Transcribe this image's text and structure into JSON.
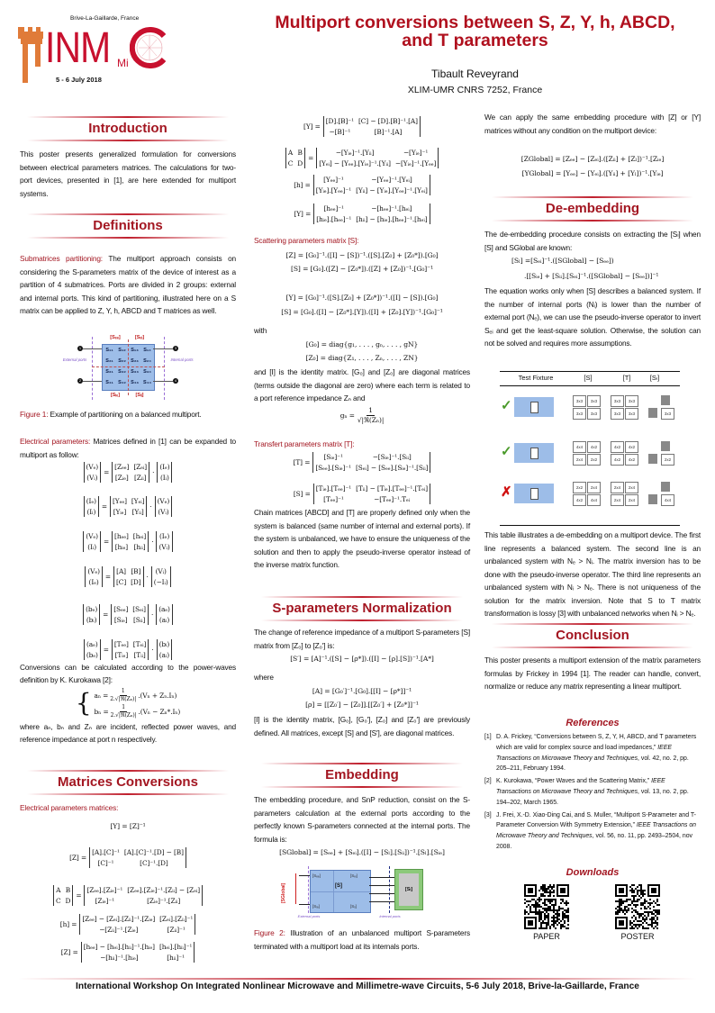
{
  "header": {
    "logo": {
      "location": "Brive-La-Gaillarde, France",
      "letters": "INM",
      "sub": "Mi",
      "date": "5 - 6 July 2018"
    },
    "title_line1": "Multiport conversions between S, Z, Y, h, ABCD,",
    "title_line2": "and T parameters",
    "author": "Tibault Reveyrand",
    "affiliation": "XLIM-UMR CNRS 7252, France"
  },
  "colors": {
    "accent": "#a31621",
    "figure_blue": "#9dbde8",
    "load_green": "#8cc97a"
  },
  "col1": {
    "blocks": [
      {
        "type": "heading",
        "text": "Introduction"
      },
      {
        "type": "para",
        "text": "This poster presents generalized formulation for conversions between electrical parameters matrices. The calculations for two-port devices, presented in  [1], are here extended for multiport systems."
      },
      {
        "type": "heading",
        "text": "Definitions"
      },
      {
        "type": "para",
        "label": "Submatrices partitioning:",
        "text": " The multiport approach consists on considering the S-parameters matrix of the device of interest as a partition of 4 submatrices. Ports are divided in 2 groups: external and internal ports. This kind of partitioning, illustrated here on a S matrix can be applied to Z, Y, h, ABCD and T matrices as well."
      },
      {
        "type": "figure1",
        "cells": [
          [
            "S₁₁",
            "S₁₂",
            "S₁₃",
            "S₁₄"
          ],
          [
            "S₂₁",
            "S₂₂",
            "S₂₃",
            "S₂₄"
          ],
          [
            "S₃₁",
            "S₃₂",
            "S₃₃",
            "S₃₄"
          ],
          [
            "S₄₁",
            "S₄₂",
            "S₄₃",
            "S₄₄"
          ]
        ],
        "blocks": [
          "[Sₑₑ]",
          "[Sₑᵢ]",
          "[Sᵢₑ]",
          "[Sᵢᵢ]"
        ],
        "external_label": "External ports",
        "internal_label": "Internal ports",
        "ports": [
          "1",
          "2",
          "3",
          "4"
        ]
      },
      {
        "type": "caption",
        "label": "Figure 1:",
        "text": " Example of partitioning on a balanced multiport."
      },
      {
        "type": "para",
        "label": "Electrical parameters:",
        "text": " Matrices defined in [1] can be expanded to multiport as follow:"
      },
      {
        "type": "eqm",
        "parts": [
          {
            "m": [
              [
                "(Vₑ)"
              ],
              [
                "(Vᵢ)"
              ]
            ]
          },
          "=",
          {
            "m": [
              [
                "[Zₑₑ]",
                "[Zₑᵢ]"
              ],
              [
                "[Zᵢₑ]",
                "[Zᵢᵢ]"
              ]
            ]
          },
          "·",
          {
            "m": [
              [
                "(Iₑ)"
              ],
              [
                "(Iᵢ)"
              ]
            ]
          }
        ]
      },
      {
        "type": "eqm",
        "parts": [
          {
            "m": [
              [
                "(Iₑ)"
              ],
              [
                "(Iᵢ)"
              ]
            ]
          },
          "=",
          {
            "m": [
              [
                "[Yₑₑ]",
                "[Yₑᵢ]"
              ],
              [
                "[Yᵢₑ]",
                "[Yᵢᵢ]"
              ]
            ]
          },
          "·",
          {
            "m": [
              [
                "(Vₑ)"
              ],
              [
                "(Vᵢ)"
              ]
            ]
          }
        ]
      },
      {
        "type": "eqm",
        "parts": [
          {
            "m": [
              [
                "(Vₑ)"
              ],
              [
                "(Iᵢ)"
              ]
            ]
          },
          "=",
          {
            "m": [
              [
                "[hₑₑ]",
                "[hₑᵢ]"
              ],
              [
                "[hᵢₑ]",
                "[hᵢᵢ]"
              ]
            ]
          },
          "·",
          {
            "m": [
              [
                "(Iₑ)"
              ],
              [
                "(Vᵢ)"
              ]
            ]
          }
        ]
      },
      {
        "type": "eqm",
        "parts": [
          {
            "m": [
              [
                "(Vₑ)"
              ],
              [
                "(Iₑ)"
              ]
            ]
          },
          "=",
          {
            "m": [
              [
                "[A]",
                "[B]"
              ],
              [
                "[C]",
                "[D]"
              ]
            ]
          },
          "·",
          {
            "m": [
              [
                "(Vᵢ)"
              ],
              [
                "(−Iᵢ)"
              ]
            ]
          }
        ]
      },
      {
        "type": "eqm",
        "parts": [
          {
            "m": [
              [
                "(bₑ)"
              ],
              [
                "(bᵢ)"
              ]
            ]
          },
          "=",
          {
            "m": [
              [
                "[Sₑₑ]",
                "[Sₑᵢ]"
              ],
              [
                "[Sᵢₑ]",
                "[Sᵢᵢ]"
              ]
            ]
          },
          "·",
          {
            "m": [
              [
                "(aₑ)"
              ],
              [
                "(aᵢ)"
              ]
            ]
          }
        ]
      },
      {
        "type": "eqm",
        "parts": [
          {
            "m": [
              [
                "(aₑ)"
              ],
              [
                "(bₑ)"
              ]
            ]
          },
          "=",
          {
            "m": [
              [
                "[Tₑₑ]",
                "[Tₑᵢ]"
              ],
              [
                "[Tᵢₑ]",
                "[Tᵢᵢ]"
              ]
            ]
          },
          "·",
          {
            "m": [
              [
                "(bᵢ)"
              ],
              [
                "(aᵢ)"
              ]
            ]
          }
        ]
      },
      {
        "type": "para",
        "text": "Conversions can be calculated according to the power-waves definition by K. Kurokawa [2]:"
      },
      {
        "type": "system",
        "lines": [
          {
            "lhs": "aₙ =",
            "num": "1",
            "den": "2.√|ℜ(Zₙ)|",
            "rhs": ".(Vₙ + Zₙ.Iₙ)"
          },
          {
            "lhs": "bₙ =",
            "num": "1",
            "den": "2.√|ℜ(Zₙ)|",
            "rhs": ".(Vₙ − Zₙ*.Iₙ)"
          }
        ]
      },
      {
        "type": "para",
        "text": "where aₙ, bₙ and Zₙ are incident, reflected power waves, and reference impedance at port n respectively."
      },
      {
        "type": "heading",
        "text": "Matrices Conversions"
      },
      {
        "type": "para",
        "label": "Electrical parameters matrices:",
        "text": ""
      },
      {
        "type": "eq",
        "text": "[Y] = [Z]⁻¹"
      },
      {
        "type": "eqm",
        "parts": [
          "[Z] =",
          {
            "m": [
              [
                "[A].[C]⁻¹",
                "[A].[C]⁻¹.[D] − [B]"
              ],
              [
                "[C]⁻¹",
                "[C]⁻¹.[D]"
              ]
            ]
          }
        ]
      },
      {
        "type": "eqm",
        "parts": [
          {
            "m": [
              [
                "A",
                "B"
              ],
              [
                "C",
                "D"
              ]
            ]
          },
          "=",
          {
            "m": [
              [
                "[Zₑₑ].[Zᵢₑ]⁻¹",
                "[Zₑₑ].[Zᵢₑ]⁻¹.[Zᵢᵢ] − [Zₑᵢ]"
              ],
              [
                "[Zᵢₑ]⁻¹",
                "[Zᵢₑ]⁻¹.[Zᵢᵢ]"
              ]
            ]
          }
        ]
      },
      {
        "type": "eqm",
        "parts": [
          "[h] =",
          {
            "m": [
              [
                "[Zₑₑ] − [Zₑᵢ].[Zᵢᵢ]⁻¹.[Zᵢₑ]",
                "[Zₑᵢ].[Zᵢᵢ]⁻¹"
              ],
              [
                "−[Zᵢᵢ]⁻¹.[Zᵢₑ]",
                "[Zᵢᵢ]⁻¹"
              ]
            ]
          }
        ]
      },
      {
        "type": "eqm",
        "parts": [
          "[Z] =",
          {
            "m": [
              [
                "[hₑₑ] − [hₑᵢ].[hᵢᵢ]⁻¹.[hᵢₑ]",
                "[hₑᵢ].[hᵢᵢ]⁻¹"
              ],
              [
                "−[hᵢᵢ]⁻¹.[hᵢₑ]",
                "[hᵢᵢ]⁻¹"
              ]
            ]
          }
        ]
      }
    ]
  },
  "col2": {
    "blocks": [
      {
        "type": "eqm",
        "parts": [
          "[Y] =",
          {
            "m": [
              [
                "[D].[B]⁻¹",
                "[C] − [D].[B]⁻¹.[A]"
              ],
              [
                "−[B]⁻¹",
                "[B]⁻¹.[A]"
              ]
            ]
          }
        ]
      },
      {
        "type": "eqm",
        "parts": [
          {
            "m": [
              [
                "A",
                "B"
              ],
              [
                "C",
                "D"
              ]
            ]
          },
          "=",
          {
            "m": [
              [
                "−[Yᵢₑ]⁻¹.[Yᵢᵢ]",
                "−[Yᵢₑ]⁻¹"
              ],
              [
                "[Yₑᵢ] − [Yₑₑ].[Yᵢₑ]⁻¹.[Yᵢᵢ]",
                "−[Yᵢₑ]⁻¹.[Yₑₑ]"
              ]
            ]
          }
        ]
      },
      {
        "type": "eqm",
        "parts": [
          "[h] =",
          {
            "m": [
              [
                "[Yₑₑ]⁻¹",
                "−[Yₑₑ]⁻¹.[Yₑᵢ]"
              ],
              [
                "[Yᵢₑ].[Yₑₑ]⁻¹",
                "[Yᵢᵢ] − [Yᵢₑ].[Yₑₑ]⁻¹.[Yₑᵢ]"
              ]
            ]
          }
        ]
      },
      {
        "type": "eqm",
        "parts": [
          "[Y] =",
          {
            "m": [
              [
                "[hₑₑ]⁻¹",
                "−[hₑₑ]⁻¹.[hₑᵢ]"
              ],
              [
                "[hᵢₑ].[hₑₑ]⁻¹",
                "[hᵢᵢ] − [hᵢₑ].[hₑₑ]⁻¹.[hₑᵢ]"
              ]
            ]
          }
        ]
      },
      {
        "type": "para",
        "label": "Scattering parameters matrix [S]:",
        "text": ""
      },
      {
        "type": "eq",
        "text": "[Z] = [G₀]⁻¹.([I] − [S])⁻¹.([S].[Z₀] + [Z₀*]).[G₀]"
      },
      {
        "type": "eq",
        "text": "[S] = [G₀].([Z] − [Z₀*]).([Z] + [Z₀])⁻¹.[G₀]⁻¹"
      },
      {
        "type": "eq",
        "text": "[Y] = [G₀]⁻¹.([S].[Z₀] + [Z₀*])⁻¹.([I] − [S]).[G₀]"
      },
      {
        "type": "eq",
        "text": "[S] = [G₀].([I] − [Z₀*].[Y]).([I] + [Z₀].[Y])⁻¹.[G₀]⁻¹"
      },
      {
        "type": "para",
        "text": "with"
      },
      {
        "type": "eq",
        "text": "[G₀] = diag{g₁, . . . , gₙ, . . . , gN}"
      },
      {
        "type": "eq",
        "text": "[Z₀] = diag{Z₁, . . . , Zₙ, . . . , ZN}"
      },
      {
        "type": "para",
        "text": "and [I] is the identity matrix. [G₀] and [Z₀] are diagonal matrices (terms outside the diagonal are zero) where each term is related to a port reference impedance Zₙ and"
      },
      {
        "type": "frac",
        "lhs": "gₙ =",
        "num": "1",
        "den": "√|ℜ(Zₙ)|"
      },
      {
        "type": "para",
        "label": "Transfert parameters matrix [T]:",
        "text": ""
      },
      {
        "type": "eqm",
        "parts": [
          "[T] =",
          {
            "m": [
              [
                "[Sᵢₑ]⁻¹",
                "−[Sᵢₑ]⁻¹.[Sᵢᵢ]"
              ],
              [
                "[Sₑₑ].[Sᵢₑ]⁻¹",
                "[Sₑᵢ] − [Sₑₑ].[Sᵢₑ]⁻¹.[Sᵢᵢ]"
              ]
            ]
          }
        ]
      },
      {
        "type": "eqm",
        "parts": [
          "[S] =",
          {
            "m": [
              [
                "[Tᵢₑ].[Tₑₑ]⁻¹",
                "[Tᵢᵢ] − [Tᵢₑ].[Tₑₑ]⁻¹.[Tₑᵢ]"
              ],
              [
                "[Tₑₑ]⁻¹",
                "−[Tₑₑ]⁻¹.Tₑᵢ"
              ]
            ]
          }
        ]
      },
      {
        "type": "para",
        "text": "Chain matrices [ABCD] and [T] are properly defined only when the system is balanced (same number of internal and external ports). If the system is unbalanced, we have to ensure the uniqueness of the solution and then to apply the pseudo-inverse operator instead of the inverse matrix function."
      },
      {
        "type": "heading",
        "text": "S-parameters Normalization"
      },
      {
        "type": "para",
        "text": "The change of reference impedance of a multiport S-parameters [S] matrix from [Z₀] to [Z₀′] is:"
      },
      {
        "type": "eq",
        "text": "[S′] = [A]⁻¹.([S] − [ρ*]).([I] − [ρ].[S])⁻¹.[A*]"
      },
      {
        "type": "para",
        "text": "where"
      },
      {
        "type": "eq",
        "text": "[A] = [G₀′]⁻¹.[G₀].[[I] − [ρ*]]⁻¹"
      },
      {
        "type": "eq",
        "text": "[ρ] = [[Z₀′] − [Z₀]].[[Z₀′] + [Z₀*]]⁻¹"
      },
      {
        "type": "para",
        "text": "[I] is the identity matrix, [G₀], [G₀′], [Z₀] and [Z₀′] are previously defined. All matrices, except [S] and [S′], are diagonal matrices."
      },
      {
        "type": "heading",
        "text": "Embedding"
      },
      {
        "type": "para",
        "text": "The embedding procedure, and SnP reduction, consist on the S-parameters calculation at the external ports according to the perfectly known S-parameters connected at the internal ports. The formula is:"
      },
      {
        "type": "eq",
        "text": "[SGlobal] = [Sₑₑ] + [Sₑᵢ].([I] − [Sₗ].[Sᵢᵢ])⁻¹.[Sₗ].[Sᵢₑ]"
      },
      {
        "type": "figure2",
        "s": "[S]",
        "see": "[Sₑₑ]",
        "sei": "[Sₑᵢ]",
        "sie": "[Sᵢₑ]",
        "sii": "[Sᵢᵢ]",
        "sl": "[Sₗ]",
        "sglobal": "[SGlobal]",
        "external_label": "External ports",
        "internal_label": "Internal ports"
      },
      {
        "type": "caption",
        "label": "Figure 2:",
        "text": " Illustration of an unbalanced multiport S-parameters terminated with a multiport load at its internals ports."
      }
    ]
  },
  "col3": {
    "blocks": [
      {
        "type": "para",
        "text": "We can apply the same embedding procedure with [Z] or [Y] matrices without any condition on the multiport device:"
      },
      {
        "type": "eq",
        "text": "[ZGlobal] = [Zₑₑ] − [Zₑᵢ].([Zᵢᵢ] + [Zₗ])⁻¹.[Zᵢₑ]"
      },
      {
        "type": "eq",
        "text": "[YGlobal] = [Yₑₑ] − [Yₑᵢ].([Yᵢᵢ] + [Yₗ])⁻¹.[Yᵢₑ]"
      },
      {
        "type": "heading",
        "text": "De-embedding"
      },
      {
        "type": "para",
        "text": "The de-embedding procedure consists on extracting the [Sₗ] when [S] and SGlobal are known:"
      },
      {
        "type": "eqleft",
        "text": "[Sₗ] =[Sₑᵢ]⁻¹.([SGlobal] − [Sₑₑ])"
      },
      {
        "type": "eqleft2",
        "text": ".[[Sᵢₑ] + [Sᵢᵢ].[Sₑᵢ]⁻¹.([SGlobal] − [Sₑₑ])]⁻¹"
      },
      {
        "type": "para",
        "text": "The equation works only when [S] describes a balanced system. If the number of internal ports (Nᵢ) is lower than the number of external port (Nₑ), we can use the pseudo-inverse operator to invert Sₑᵢ and get the least-square solution.  Otherwise, the solution can not be solved and requires more assumptions."
      },
      {
        "type": "table",
        "headers": [
          "Test Fixture",
          "[S]",
          "[T]",
          "[Sₗ]"
        ],
        "rows": [
          {
            "status": "check",
            "s": [
              "3x3",
              "3x3",
              "3x3",
              "3x3"
            ],
            "t": [
              "3x3",
              "3x3",
              "3x3",
              "3x3"
            ],
            "sl": "3x3"
          },
          {
            "status": "check",
            "s": [
              "4x4",
              "4x2",
              "2x4",
              "2x2"
            ],
            "t": [
              "4x2",
              "4x2",
              "4x2",
              "4x2"
            ],
            "sl": "2x2"
          },
          {
            "status": "cross",
            "s": [
              "2x2",
              "2x4",
              "4x2",
              "4x4"
            ],
            "t": [
              "2x4",
              "2x4",
              "2x4",
              "2x4"
            ],
            "sl": "4x4"
          }
        ]
      },
      {
        "type": "para",
        "text": "This table illustrates a de-embedding on a multiport device.  The first line represents a balanced system.  The second line is an unbalanced system with Nₑ > Nᵢ.  The matrix inversion has to be done with the pseudo-inverse operator. The third line represents an unbalanced system with Nᵢ > Nₑ. There is not uniqueness of the solution for the matrix inversion. Note that S to T matrix transformation is lossy [3] with unbalanced networks when Nᵢ > Nₑ."
      },
      {
        "type": "heading",
        "text": "Conclusion"
      },
      {
        "type": "para",
        "text": "This poster presents a multiport extension of the matrix parameters formulas by Frickey in 1994 [1].  The reader can handle, convert, normalize or reduce any matrix representing a linear multiport."
      },
      {
        "type": "subheading",
        "text": "References"
      },
      {
        "type": "refs",
        "items": [
          {
            "num": "[1]",
            "text": "D. A. Frickey, “Conversions between S, Z, Y, H, ABCD, and T parameters which are valid for complex source and load impedances,” ",
            "journal": "IEEE Transactions on Microwave Theory and Techniques",
            "rest": ", vol. 42, no. 2, pp. 205–211, February 1994."
          },
          {
            "num": "[2]",
            "text": "K. Kurokawa, “Power Waves and the Scattering Matrix,” ",
            "journal": "IEEE Transactions on Microwave Theory and Techniques",
            "rest": ", vol. 13, no. 2, pp. 194–202, March 1965."
          },
          {
            "num": "[3]",
            "text": "J. Frei, X.-D. Xiao-Ding Cai, and S. Muller, “Multiport S-Parameter and T-Parameter Conversion With Symmetry Extension,” ",
            "journal": "IEEE Transactions on Microwave Theory and Techniques",
            "rest": ", vol. 56, no. 11, pp. 2493–2504, nov 2008."
          }
        ]
      },
      {
        "type": "subheading",
        "text": "Downloads"
      },
      {
        "type": "qr",
        "items": [
          "PAPER",
          "POSTER"
        ]
      }
    ]
  },
  "footer": "International Workshop On Integrated Nonlinear Microwave and Millimetre-wave Circuits, 5-6 July 2018, Brive-la-Gaillarde, France"
}
